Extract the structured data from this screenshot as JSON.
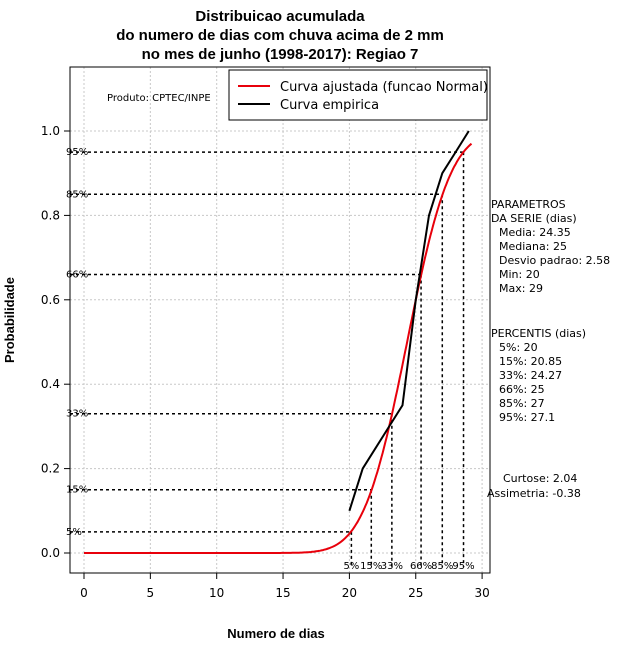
{
  "chart_data": {
    "type": "line",
    "title": [
      "Distribuicao acumulada",
      "do numero de dias com chuva acima de 2 mm",
      "no mes de junho (1998-2017): Regiao 7"
    ],
    "xlabel": "Numero de dias",
    "ylabel": "Probabilidade",
    "xlim": [
      0,
      30
    ],
    "ylim": [
      0,
      1.1
    ],
    "xticks": [
      0,
      5,
      10,
      15,
      20,
      25,
      30
    ],
    "yticks": [
      0.0,
      0.2,
      0.4,
      0.6,
      0.8,
      1.0
    ],
    "ytick_labels": [
      "0.0",
      "0.2",
      "0.4",
      "0.6",
      "0.8",
      "1.0"
    ],
    "grid": true,
    "product_label": "Produto: CPTEC/INPE",
    "legend": {
      "position": "top-right",
      "entries": [
        {
          "label": "Curva ajustada (funcao Normal)",
          "color": "#e8000b"
        },
        {
          "label": "Curva empirica",
          "color": "#000000"
        }
      ]
    },
    "normal": {
      "mean": 24.35,
      "sd": 2.58,
      "x_range": [
        0,
        29.2
      ]
    },
    "series": [
      {
        "name": "Curva empirica",
        "color": "#000000",
        "x": [
          20,
          21,
          23,
          24,
          25,
          26,
          27,
          28,
          29
        ],
        "y": [
          0.1,
          0.2,
          0.3,
          0.35,
          0.6,
          0.8,
          0.9,
          0.95,
          1.0
        ]
      }
    ],
    "percentiles": [
      {
        "p": 0.05,
        "x": 20.15,
        "label": "5%",
        "ylabel": "5%"
      },
      {
        "p": 0.15,
        "x": 21.65,
        "label": "15%",
        "ylabel": "15%"
      },
      {
        "p": 0.33,
        "x": 23.2,
        "label": "33%",
        "ylabel": "33%"
      },
      {
        "p": 0.66,
        "x": 25.4,
        "label": "66%",
        "ylabel": "66%"
      },
      {
        "p": 0.85,
        "x": 27.0,
        "label": "85%",
        "ylabel": "85%"
      },
      {
        "p": 0.95,
        "x": 28.6,
        "label": "95%",
        "ylabel": "95%"
      }
    ]
  },
  "side_panel": {
    "params": [
      "PARAMETROS",
      "DA SERIE (dias)",
      "Media: 24.35",
      "Mediana: 25",
      "Desvio padrao: 2.58",
      "Min: 20",
      "Max: 29"
    ],
    "percentis": [
      "PERCENTIS (dias)",
      "5%: 20",
      "15%: 20.85",
      "33%: 24.27",
      "66%: 25",
      "85%: 27",
      "95%: 27.1"
    ],
    "shape": [
      "Curtose: 2.04",
      "Assimetria: -0.38"
    ]
  }
}
